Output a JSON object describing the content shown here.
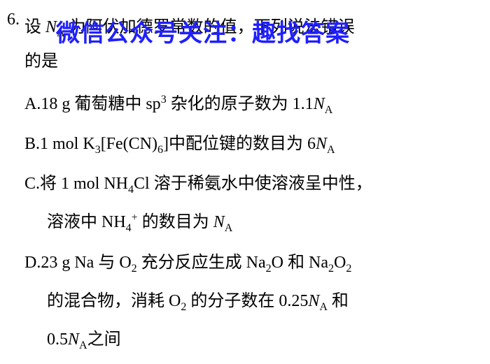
{
  "question": {
    "number": "6.",
    "stem_line1": "设 N_A 为阿伏加德罗常数的值，下列说法错误",
    "stem_line2": "的是",
    "watermark": "微信公众号关注：趣找答案",
    "options": {
      "A": {
        "label": "A.",
        "text": "18 g 葡萄糖中 sp",
        "sup": "3",
        "text2": " 杂化的原子数为 1.1",
        "na": "N",
        "sub": "A"
      },
      "B": {
        "label": "B.",
        "text": "1 mol K",
        "sub1": "3",
        "text2": "[Fe(CN)",
        "sub2": "6",
        "text3": "]中配位键的数目为 6",
        "na": "N",
        "sub3": "A"
      },
      "C": {
        "label": "C.",
        "line1_p1": "将 1 mol NH",
        "line1_sub1": "4",
        "line1_p2": "Cl 溶于稀氨水中使溶液呈中性，",
        "line2_p1": "溶液中 NH",
        "line2_sub1": "4",
        "line2_sup1": "+",
        "line2_p2": " 的数目为 ",
        "line2_na": "N",
        "line2_sub2": "A"
      },
      "D": {
        "label": "D.",
        "line1_p1": "23 g Na 与 O",
        "line1_sub1": "2",
        "line1_p2": " 充分反应生成 Na",
        "line1_sub2": "2",
        "line1_p3": "O 和 Na",
        "line1_sub3": "2",
        "line1_p4": "O",
        "line1_sub4": "2",
        "line2_p1": "的混合物，消耗 O",
        "line2_sub1": "2",
        "line2_p2": " 的分子数在 0.25",
        "line2_na1": "N",
        "line2_sub2": "A",
        "line2_p3": " 和",
        "line3_p1": "0.5",
        "line3_na": "N",
        "line3_sub1": "A",
        "line3_p2": "之间"
      }
    }
  },
  "colors": {
    "text": "#000000",
    "watermark": "#2020ff",
    "background": "#ffffff"
  }
}
